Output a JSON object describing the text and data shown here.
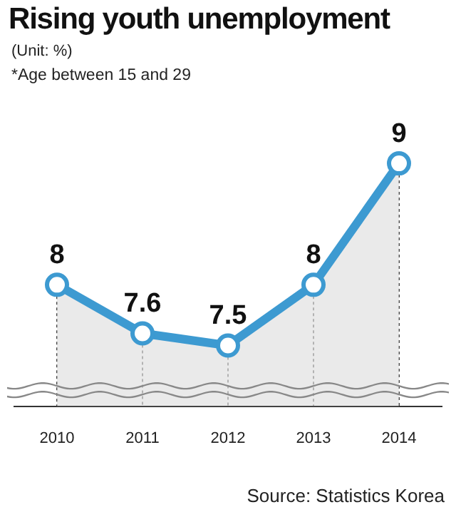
{
  "chart_data": {
    "type": "area",
    "title": "Rising youth unemployment",
    "subtitle": "(Unit: %)",
    "annotations": [
      "*Age between 15 and 29",
      "Source: Statistics Korea"
    ],
    "categories": [
      "2010",
      "2011",
      "2012",
      "2013",
      "2014"
    ],
    "series": [
      {
        "color": "#3d9ad1",
        "values": [
          8,
          7.6,
          7.5,
          8,
          9
        ]
      }
    ],
    "grid": false,
    "legend": false,
    "marker": "circle",
    "data_labels": true,
    "tick_labels": "x",
    "line_style": "solid"
  }
}
